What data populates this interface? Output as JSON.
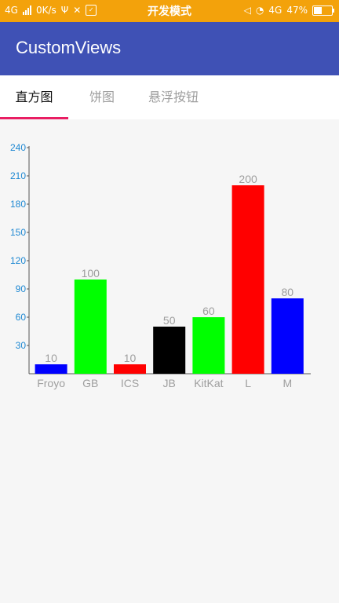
{
  "status_bar": {
    "network": "4G",
    "speed": "0K/s",
    "time": "开发模式",
    "network_right": "4G",
    "battery_percent": "47%",
    "battery_level": 0.47
  },
  "app_bar": {
    "title": "CustomViews"
  },
  "tabs": [
    {
      "label": "直方图",
      "active": true
    },
    {
      "label": "饼图",
      "active": false
    },
    {
      "label": "悬浮按钮",
      "active": false
    }
  ],
  "colors": {
    "status_bar": "#f3a20b",
    "app_bar": "#3f51b5",
    "tab_indicator": "#e91e63",
    "axis_tick": "#1e88d2",
    "value_label": "#9e9e9e"
  },
  "chart_data": {
    "type": "bar",
    "categories": [
      "Froyo",
      "GB",
      "ICS",
      "JB",
      "KitKat",
      "L",
      "M"
    ],
    "values": [
      10,
      100,
      10,
      50,
      60,
      200,
      80
    ],
    "bar_colors": [
      "#0000ff",
      "#00ff00",
      "#ff0000",
      "#000000",
      "#00ff00",
      "#ff0000",
      "#0000ff"
    ],
    "yticks": [
      30,
      60,
      90,
      120,
      150,
      180,
      210,
      240
    ],
    "ylim": [
      0,
      240
    ],
    "grid": false,
    "title": "",
    "xlabel": "",
    "ylabel": ""
  }
}
